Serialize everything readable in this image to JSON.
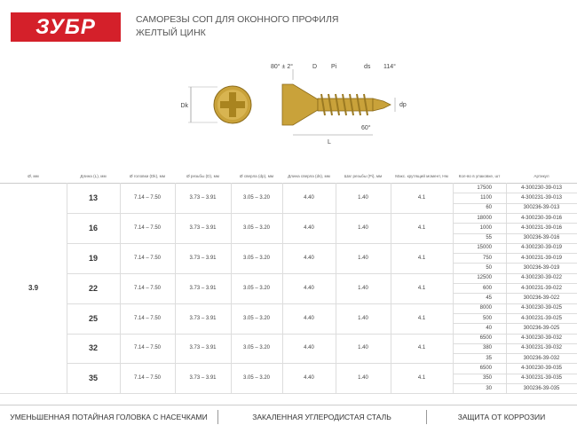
{
  "header": {
    "logo": "ЗУБР",
    "title": "САМОРЕЗЫ СОП ДЛЯ ОКОННОГО ПРОФИЛЯ",
    "subtitle": "ЖЕЛТЫЙ ЦИНК"
  },
  "diagram": {
    "head_angle": "80° ± 2°",
    "d": "D",
    "pi": "Pi",
    "ds": "ds",
    "tip_angle": "114°",
    "dk": "Dk",
    "dp": "dp",
    "tip_60": "60°",
    "l": "L"
  },
  "table": {
    "headers": [
      "Ø, мм",
      "Длина (L), мм",
      "Ø головки (Dk), мм",
      "Ø резьбы (D), мм",
      "Ø сверла (dp), мм",
      "Длина сверла (ds), мм",
      "Шаг резьбы (Pi), мм",
      "Макс. крутящий момент, Нм",
      "Кол-во в упаковке, шт",
      "Артикул"
    ],
    "diameter": "3.9",
    "groups": [
      {
        "length": "13",
        "head": "7.14 – 7.50",
        "thread": "3.73 – 3.91",
        "drill": "3.05 – 3.20",
        "drill_length": "4.40",
        "pitch": "1.40",
        "torque": "4.1",
        "packs": [
          {
            "qty": "17500",
            "article": "4-300230-39-013"
          },
          {
            "qty": "1100",
            "article": "4-300231-39-013"
          },
          {
            "qty": "60",
            "article": "300236-39-013"
          }
        ]
      },
      {
        "length": "16",
        "head": "7.14 – 7.50",
        "thread": "3.73 – 3.91",
        "drill": "3.05 – 3.20",
        "drill_length": "4.40",
        "pitch": "1.40",
        "torque": "4.1",
        "packs": [
          {
            "qty": "18000",
            "article": "4-300230-39-016"
          },
          {
            "qty": "1000",
            "article": "4-300231-39-016"
          },
          {
            "qty": "55",
            "article": "300236-39-016"
          }
        ]
      },
      {
        "length": "19",
        "head": "7.14 – 7.50",
        "thread": "3.73 – 3.91",
        "drill": "3.05 – 3.20",
        "drill_length": "4.40",
        "pitch": "1.40",
        "torque": "4.1",
        "packs": [
          {
            "qty": "15000",
            "article": "4-300230-39-019"
          },
          {
            "qty": "750",
            "article": "4-300231-39-019"
          },
          {
            "qty": "50",
            "article": "300236-39-019"
          }
        ]
      },
      {
        "length": "22",
        "head": "7.14 – 7.50",
        "thread": "3.73 – 3.91",
        "drill": "3.05 – 3.20",
        "drill_length": "4.40",
        "pitch": "1.40",
        "torque": "4.1",
        "packs": [
          {
            "qty": "12500",
            "article": "4-300230-39-022"
          },
          {
            "qty": "600",
            "article": "4-300231-39-022"
          },
          {
            "qty": "45",
            "article": "300236-39-022"
          }
        ]
      },
      {
        "length": "25",
        "head": "7.14 – 7.50",
        "thread": "3.73 – 3.91",
        "drill": "3.05 – 3.20",
        "drill_length": "4.40",
        "pitch": "1.40",
        "torque": "4.1",
        "packs": [
          {
            "qty": "8000",
            "article": "4-300230-39-025"
          },
          {
            "qty": "500",
            "article": "4-300231-39-025"
          },
          {
            "qty": "40",
            "article": "300236-39-025"
          }
        ]
      },
      {
        "length": "32",
        "head": "7.14 – 7.50",
        "thread": "3.73 – 3.91",
        "drill": "3.05 – 3.20",
        "drill_length": "4.40",
        "pitch": "1.40",
        "torque": "4.1",
        "packs": [
          {
            "qty": "6500",
            "article": "4-300230-39-032"
          },
          {
            "qty": "380",
            "article": "4-300231-39-032"
          },
          {
            "qty": "35",
            "article": "300236-39-032"
          }
        ]
      },
      {
        "length": "35",
        "head": "7.14 – 7.50",
        "thread": "3.73 – 3.91",
        "drill": "3.05 – 3.20",
        "drill_length": "4.40",
        "pitch": "1.40",
        "torque": "4.1",
        "packs": [
          {
            "qty": "6500",
            "article": "4-300230-39-035"
          },
          {
            "qty": "350",
            "article": "4-300231-39-035"
          },
          {
            "qty": "30",
            "article": "300236-39-035"
          }
        ]
      }
    ]
  },
  "footer": [
    "УМЕНЬШЕННАЯ ПОТАЙНАЯ ГОЛОВКА С НАСЕЧКАМИ",
    "ЗАКАЛЕННАЯ УГЛЕРОДИСТАЯ СТАЛЬ",
    "ЗАЩИТА ОТ КОРРОЗИИ"
  ]
}
